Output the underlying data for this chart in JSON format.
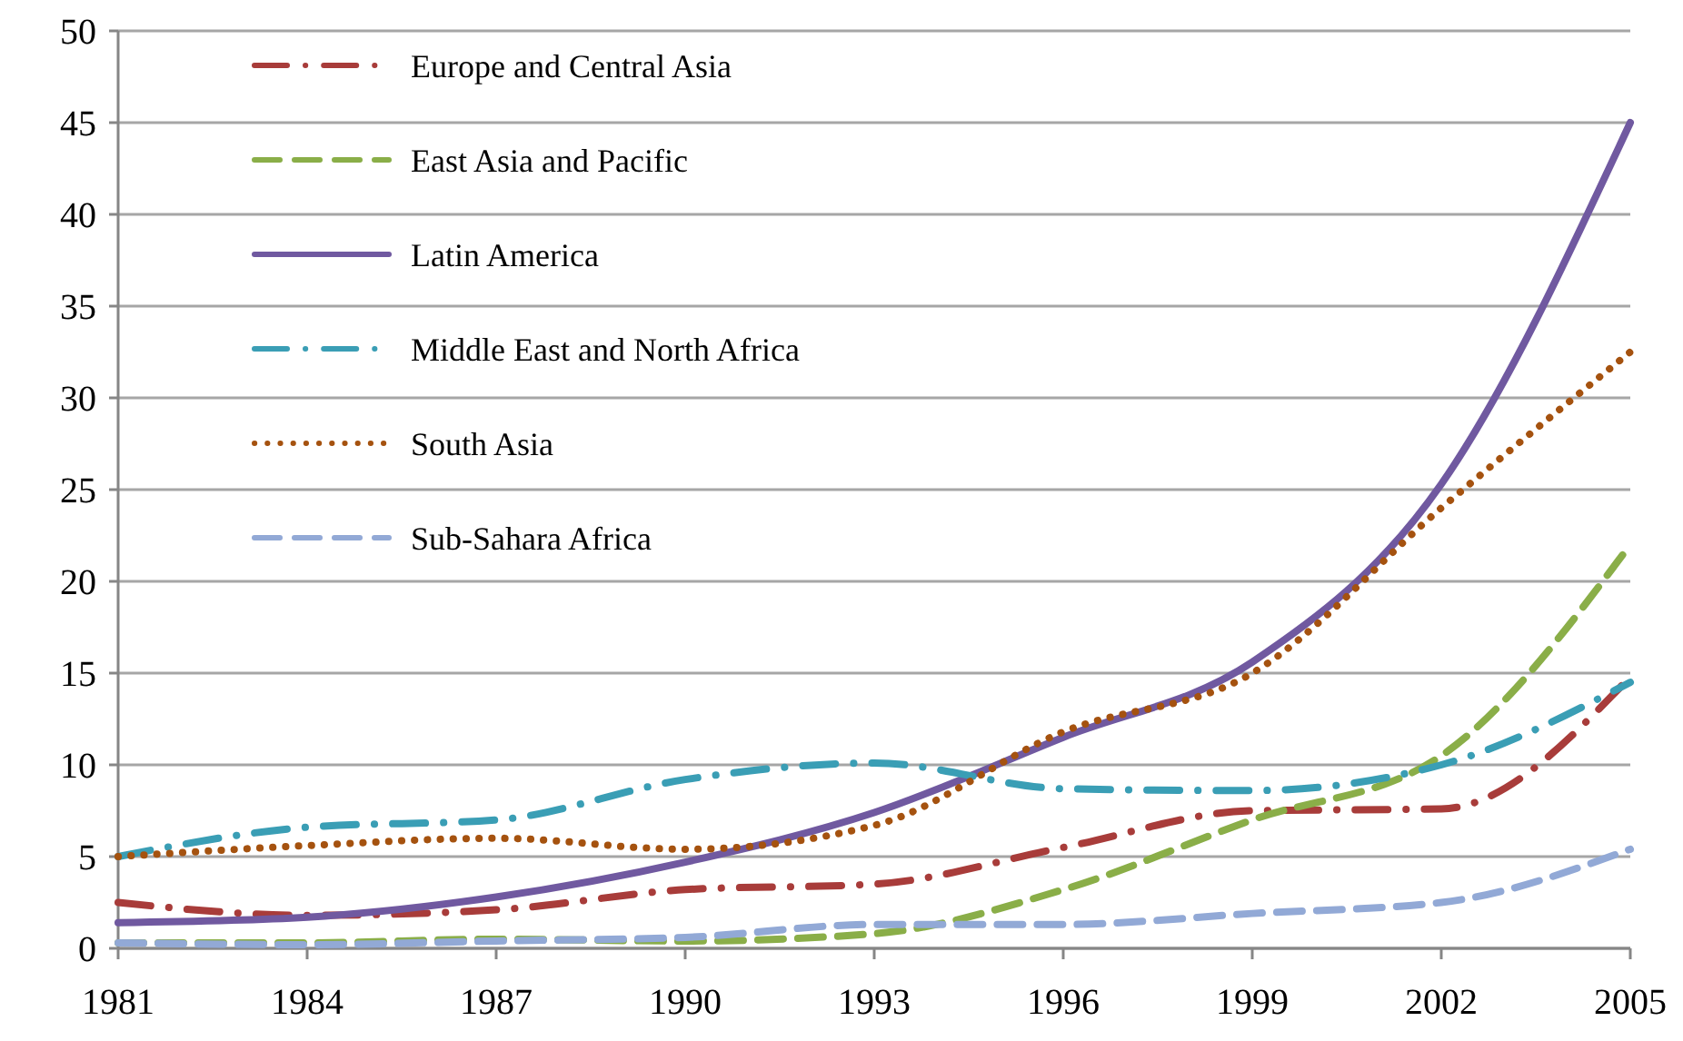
{
  "chart_data": {
    "type": "line",
    "x": [
      1981,
      1984,
      1987,
      1990,
      1993,
      1996,
      1999,
      2002,
      2005
    ],
    "xlim": [
      1981,
      2005
    ],
    "xticks": [
      1981,
      1984,
      1987,
      1990,
      1993,
      1996,
      1999,
      2002,
      2005
    ],
    "ylim": [
      0,
      50
    ],
    "yticks": [
      0,
      5,
      10,
      15,
      20,
      25,
      30,
      35,
      40,
      45,
      50
    ],
    "grid": "y",
    "legend": "top left",
    "marker": "none",
    "series": [
      {
        "name": "Europe and Central Asia",
        "color": "#a83c3a",
        "line_style": "dashdot",
        "values": [
          2.5,
          1.8,
          2.1,
          3.2,
          3.5,
          5.5,
          7.5,
          7.6,
          14.8
        ]
      },
      {
        "name": "East Asia and Pacific",
        "color": "#8aae48",
        "line_style": "dashed",
        "values": [
          0.3,
          0.3,
          0.5,
          0.4,
          0.8,
          3.2,
          7.0,
          10.5,
          22
        ]
      },
      {
        "name": "Latin America",
        "color": "#7059a0",
        "line_style": "solid",
        "values": [
          1.4,
          1.7,
          2.8,
          4.7,
          7.4,
          11.5,
          15.6,
          25.3,
          45
        ]
      },
      {
        "name": "Middle East and North Africa",
        "color": "#3a9eb5",
        "line_style": "dashdot",
        "values": [
          5.0,
          6.6,
          7.0,
          9.2,
          10.1,
          8.7,
          8.6,
          10.0,
          14.5
        ]
      },
      {
        "name": "South Asia",
        "color": "#a5520f",
        "line_style": "dotted",
        "values": [
          5.0,
          5.6,
          6.0,
          5.4,
          6.7,
          11.8,
          15.0,
          24.0,
          32.5
        ]
      },
      {
        "name": "Sub-Sahara Africa",
        "color": "#92a9d6",
        "line_style": "dashed",
        "values": [
          0.3,
          0.2,
          0.4,
          0.6,
          1.3,
          1.3,
          1.9,
          2.5,
          5.4
        ]
      }
    ]
  }
}
